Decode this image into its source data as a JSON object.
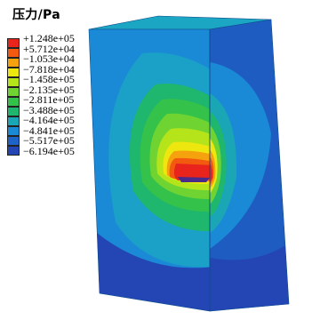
{
  "legend": {
    "title": "压力/Pa",
    "labels": [
      "+1.248e+05",
      "+5.712e+04",
      "−1.053e+04",
      "−7.818e+04",
      "−1.458e+05",
      "−2.135e+05",
      "−2.811e+05",
      "−3.488e+05",
      "−4.164e+05",
      "−4.841e+05",
      "−5.517e+05",
      "−6.194e+05"
    ],
    "colors": [
      "#e8241c",
      "#f25a10",
      "#f5a20e",
      "#ede70f",
      "#b5e41a",
      "#6fd432",
      "#34c24a",
      "#1fb66e",
      "#1ba6b5",
      "#1a8ad6",
      "#1e64c8",
      "#2346b4"
    ]
  },
  "model": {
    "top_face_color": "#1ba6c4",
    "front_face_color": "#1a8ad6",
    "side_face_color": "#1e5cc2",
    "bottom_band_color": "#2346b4"
  }
}
